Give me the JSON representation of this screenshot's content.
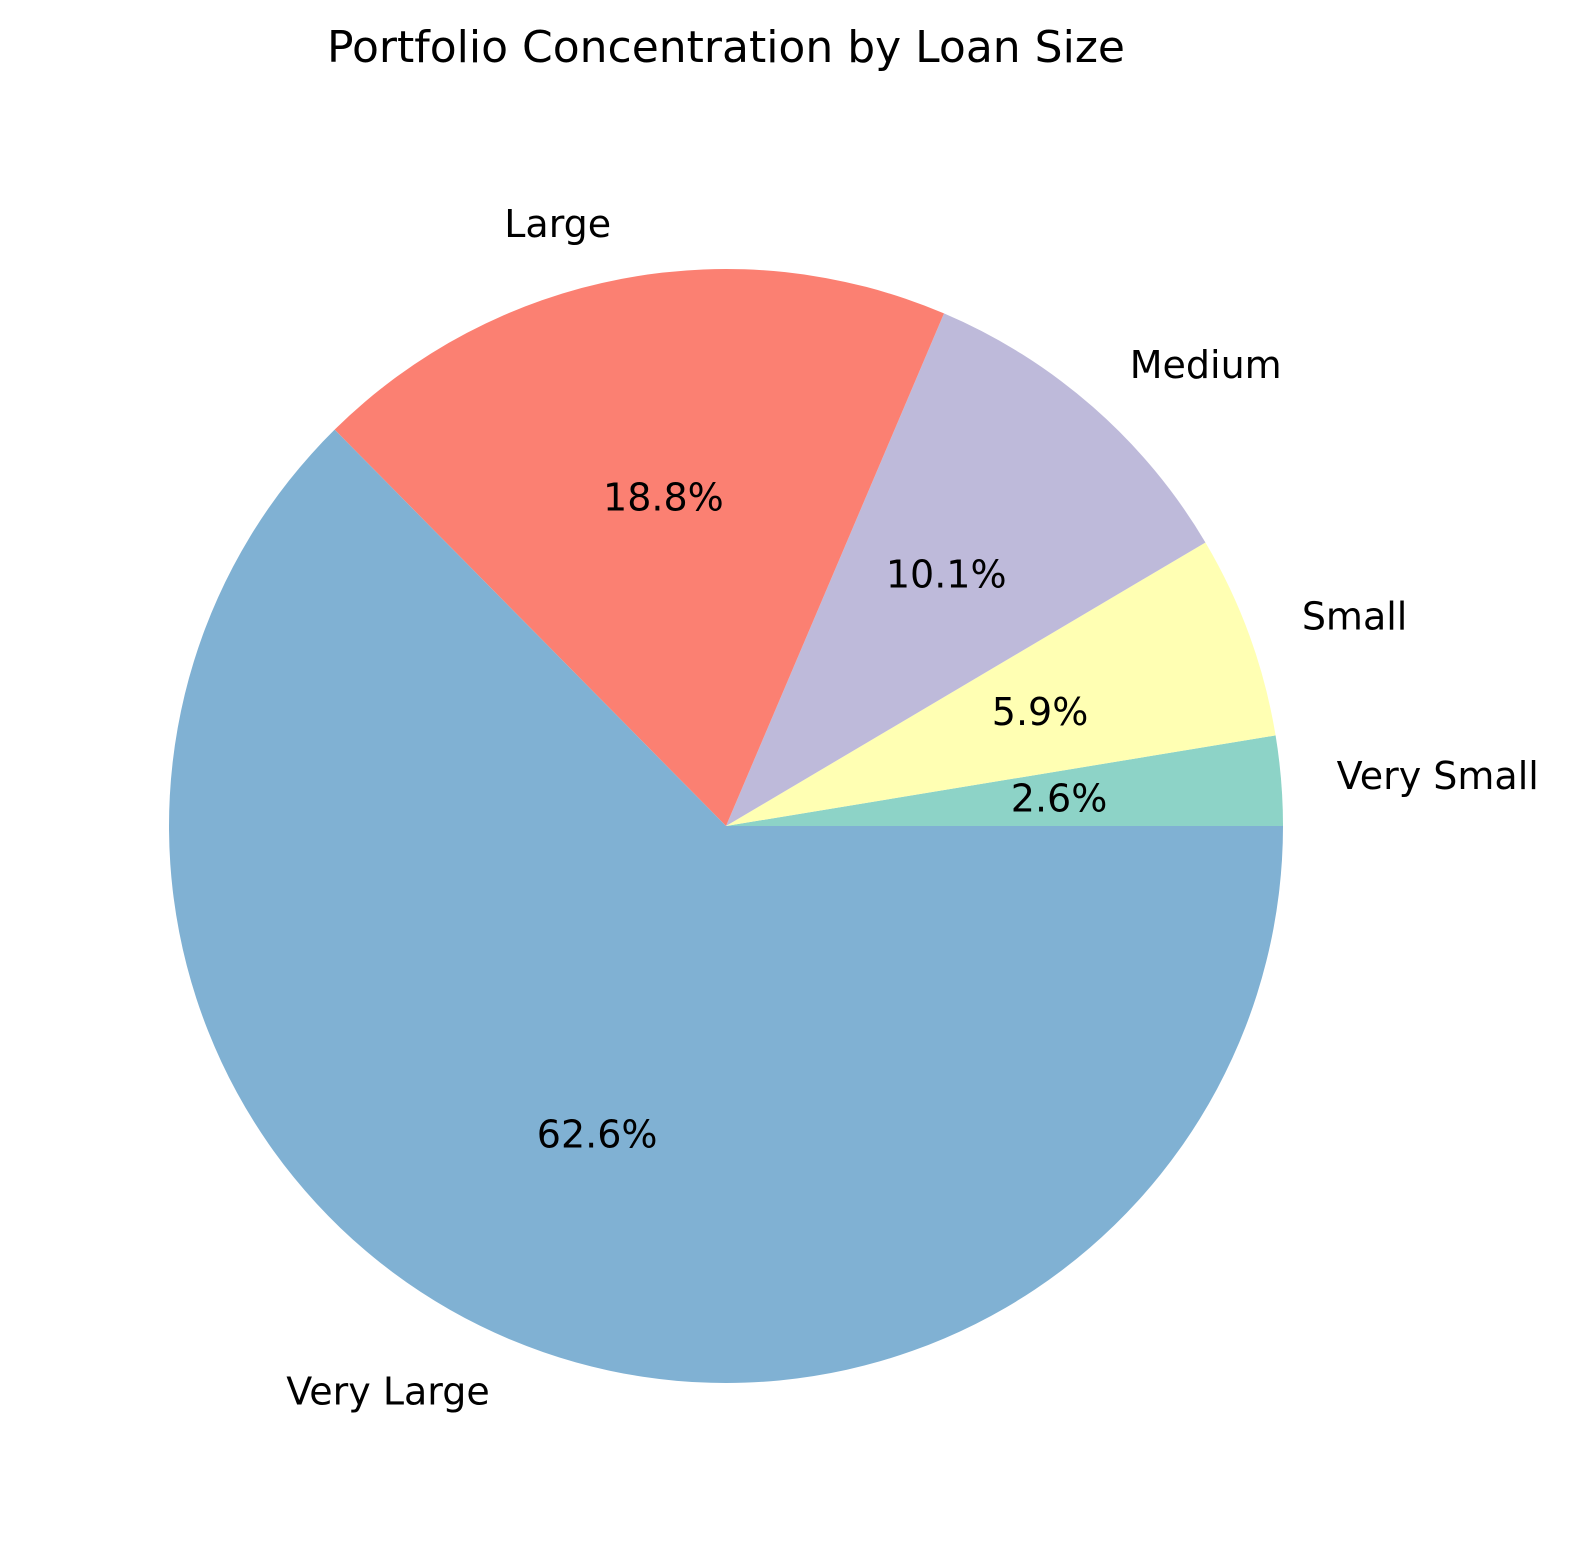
{
  "chart_data": {
    "type": "pie",
    "title": "Portfolio Concentration by Loan Size",
    "categories": [
      "Very Small",
      "Small",
      "Medium",
      "Large",
      "Very Large"
    ],
    "values": [
      2.6,
      5.9,
      10.1,
      18.8,
      62.6
    ],
    "value_labels": [
      "2.6%",
      "5.9%",
      "10.1%",
      "18.8%",
      "62.6%"
    ],
    "colors": [
      "#8dd3c7",
      "#ffffb3",
      "#bebada",
      "#fb8072",
      "#80b1d3"
    ],
    "start_angle_deg": 0,
    "direction": "counterclockwise",
    "legend": "none"
  }
}
